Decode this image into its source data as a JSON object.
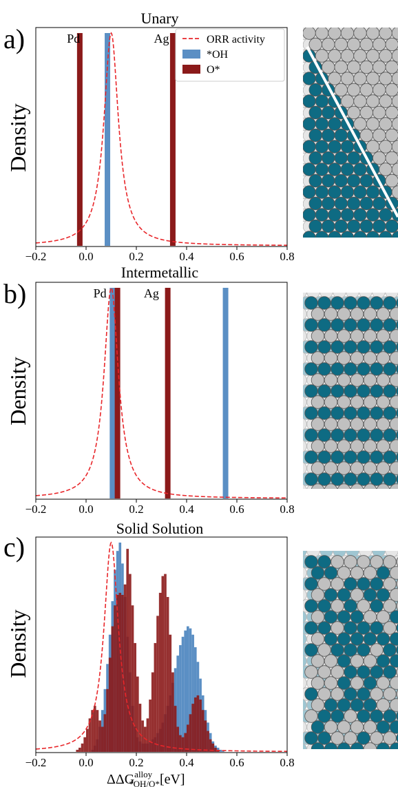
{
  "colors": {
    "oh": "#5b8fc4",
    "o": "#8b1a1a",
    "orr": "#e8262a",
    "teal": "#0e6b83",
    "grey": "#c0c0c0",
    "lightgrey": "#e6e6e6",
    "lightteal": "#9fc6d2"
  },
  "legend": {
    "orr": "ORR activity",
    "oh": "*OH",
    "o": "O*"
  },
  "x_label": {
    "main": "ΔΔG",
    "sup": "alloy",
    "sub": "*OH/O*",
    "unit": "[eV]"
  },
  "icons": [
    "unary-slab-icon",
    "intermetallic-slab-icon",
    "solid-solution-slab-icon"
  ],
  "chart_data": [
    {
      "type": "bar",
      "panel_letter": "a)",
      "title": "Unary",
      "ylabel": "Density",
      "xlim": [
        -0.2,
        0.8
      ],
      "x_ticks": [
        "−0.2",
        "0.0",
        "0.2",
        "0.4",
        "0.6",
        "0.8"
      ],
      "annotations": [
        {
          "text": "Pd",
          "x": -0.05
        },
        {
          "text": "Ag",
          "x": 0.3
        }
      ],
      "series": [
        {
          "name": "*OH",
          "bars": [
            {
              "x": 0.085,
              "h": 1.0
            }
          ]
        },
        {
          "name": "O*",
          "bars": [
            {
              "x": -0.025,
              "h": 1.0
            },
            {
              "x": 0.345,
              "h": 1.0
            }
          ]
        }
      ],
      "orr_activity": {
        "center": 0.1,
        "gamma": 0.035
      },
      "legend_placement": "top-right"
    },
    {
      "type": "bar",
      "panel_letter": "b)",
      "title": "Intermetallic",
      "ylabel": "Density",
      "xlim": [
        -0.2,
        0.8
      ],
      "x_ticks": [
        "−0.2",
        "0.0",
        "0.2",
        "0.4",
        "0.6",
        "0.8"
      ],
      "annotations": [
        {
          "text": "Pd",
          "x": 0.055
        },
        {
          "text": "Ag",
          "x": 0.26
        }
      ],
      "series": [
        {
          "name": "*OH",
          "bars": [
            {
              "x": 0.105,
              "h": 1.0
            },
            {
              "x": 0.555,
              "h": 1.0
            }
          ]
        },
        {
          "name": "O*",
          "bars": [
            {
              "x": 0.125,
              "h": 1.0
            },
            {
              "x": 0.325,
              "h": 1.0
            }
          ]
        }
      ],
      "orr_activity": {
        "center": 0.1,
        "gamma": 0.035
      }
    },
    {
      "type": "bar",
      "panel_letter": "c)",
      "title": "Solid Solution",
      "ylabel": "Density",
      "xlim": [
        -0.2,
        0.8
      ],
      "x_ticks": [
        "−0.2",
        "0.0",
        "0.2",
        "0.4",
        "0.6",
        "0.8"
      ],
      "bin_start": -0.1,
      "bin_width": 0.01,
      "series": [
        {
          "name": "*OH",
          "values": [
            0,
            0,
            0,
            0,
            0,
            0,
            0,
            0,
            0,
            0,
            0,
            0,
            0.01,
            0.03,
            0.06,
            0.12,
            0.2,
            0.3,
            0.42,
            0.56,
            0.72,
            0.87,
            0.96,
            1.0,
            0.9,
            0.74,
            0.55,
            0.38,
            0.22,
            0.12,
            0.07,
            0.05,
            0.04,
            0.04,
            0.04,
            0.05,
            0.06,
            0.07,
            0.09,
            0.11,
            0.14,
            0.18,
            0.22,
            0.27,
            0.33,
            0.4,
            0.46,
            0.51,
            0.55,
            0.58,
            0.6,
            0.59,
            0.56,
            0.5,
            0.43,
            0.35,
            0.27,
            0.2,
            0.14,
            0.09,
            0.05,
            0.03,
            0.02,
            0.01,
            0.005,
            0,
            0,
            0,
            0,
            0,
            0,
            0,
            0,
            0,
            0,
            0,
            0,
            0,
            0,
            0,
            0,
            0,
            0,
            0,
            0,
            0,
            0,
            0,
            0,
            0,
            0
          ]
        },
        {
          "name": "O*",
          "values": [
            0,
            0,
            0,
            0,
            0,
            0,
            0.01,
            0.02,
            0.04,
            0.07,
            0.11,
            0.16,
            0.2,
            0.22,
            0.2,
            0.15,
            0.12,
            0.18,
            0.3,
            0.45,
            0.6,
            0.7,
            0.75,
            0.76,
            0.75,
            0.8,
            0.97,
            0.85,
            0.7,
            0.52,
            0.36,
            0.23,
            0.15,
            0.12,
            0.16,
            0.25,
            0.38,
            0.52,
            0.65,
            0.76,
            0.84,
            0.85,
            0.74,
            0.56,
            0.38,
            0.22,
            0.12,
            0.08,
            0.07,
            0.09,
            0.13,
            0.18,
            0.23,
            0.26,
            0.27,
            0.25,
            0.2,
            0.15,
            0.1,
            0.06,
            0.04,
            0.02,
            0.01,
            0,
            0,
            0,
            0,
            0,
            0,
            0,
            0,
            0,
            0,
            0,
            0,
            0,
            0,
            0,
            0,
            0,
            0,
            0,
            0,
            0,
            0,
            0,
            0,
            0,
            0,
            0,
            0
          ]
        }
      ],
      "orr_activity": {
        "center": 0.1,
        "gamma": 0.035
      }
    }
  ]
}
